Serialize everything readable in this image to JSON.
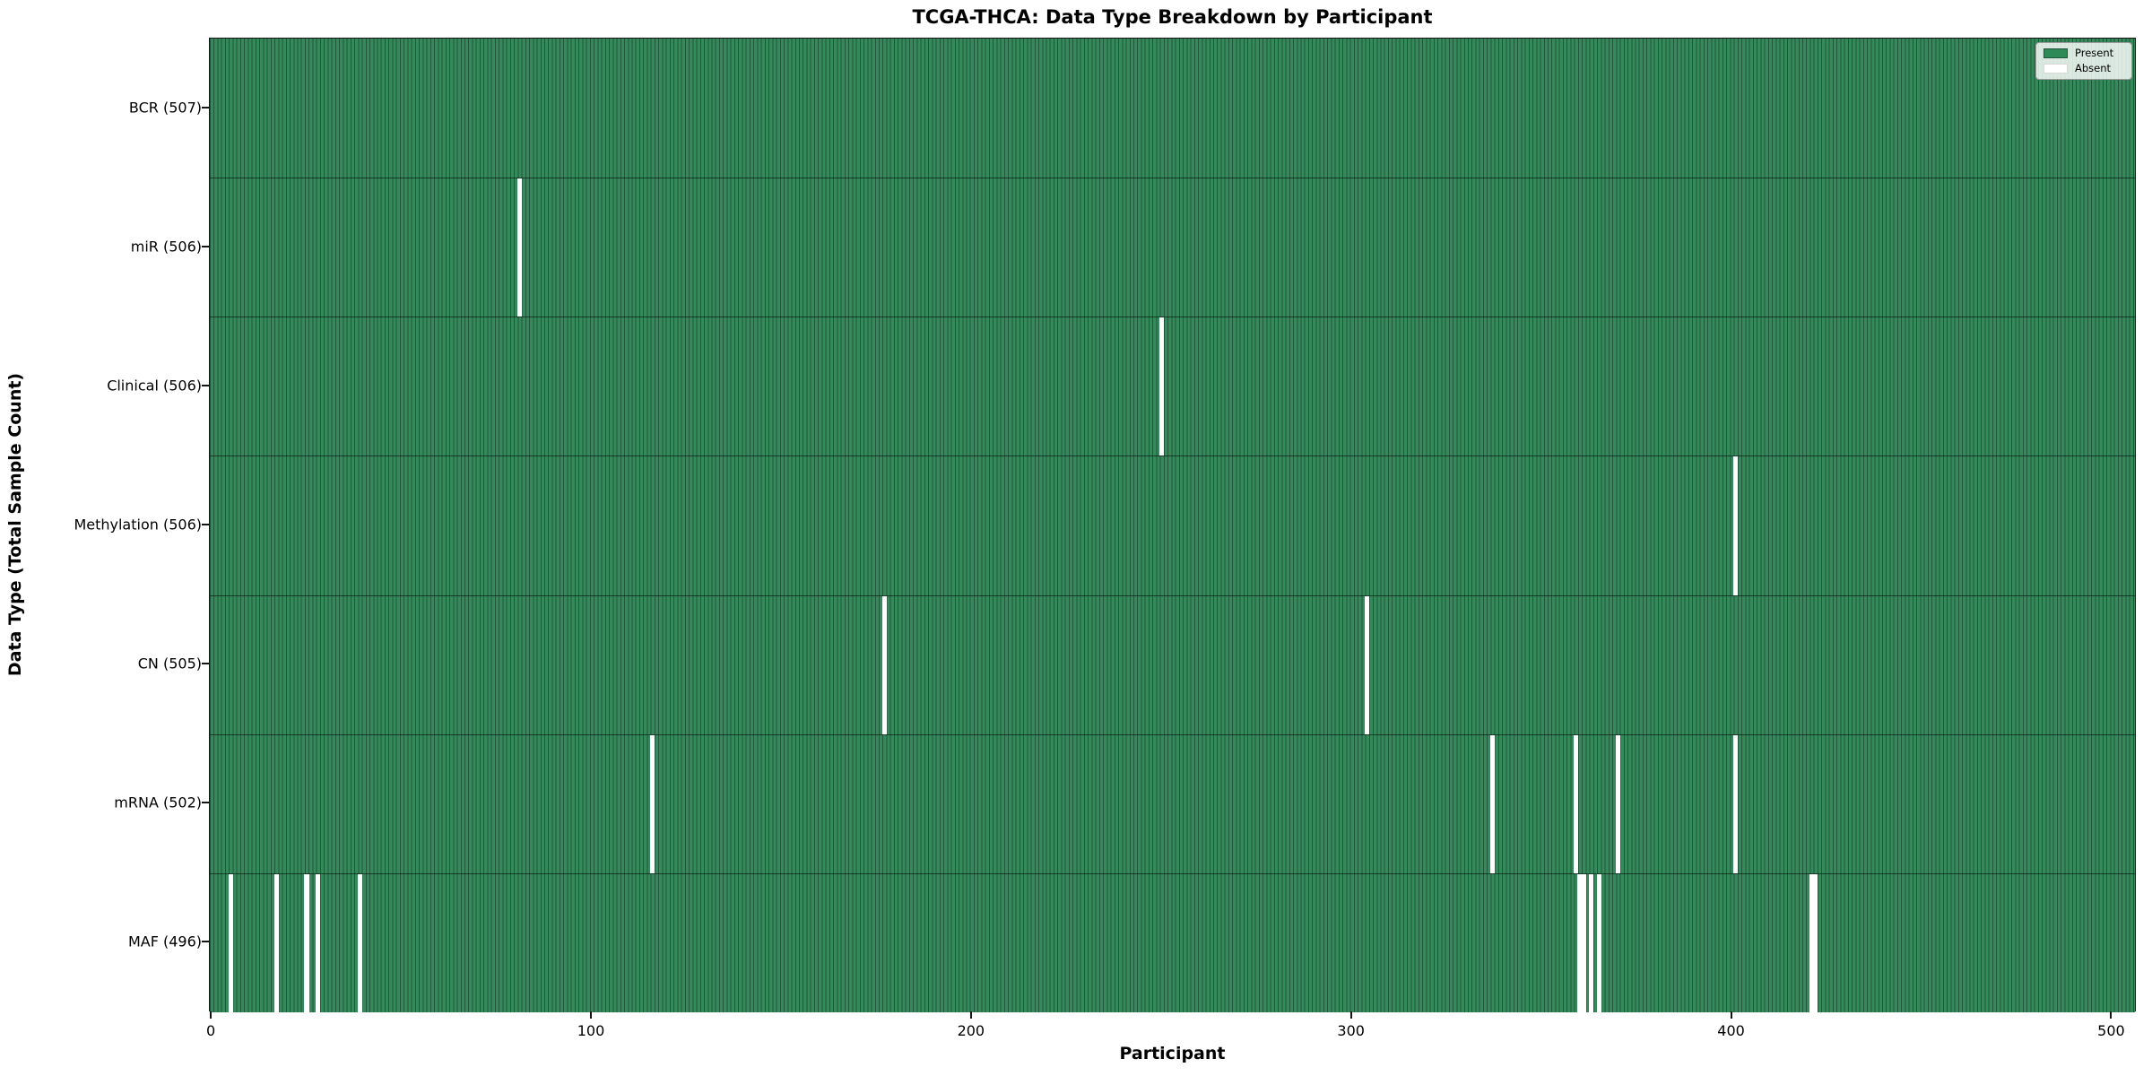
{
  "chart_data": {
    "type": "heatmap",
    "title": "TCGA-THCA: Data Type Breakdown by Participant",
    "xlabel": "Participant",
    "ylabel": "Data Type (Total Sample Count)",
    "n_participants": 507,
    "x_ticks": [
      0,
      100,
      200,
      300,
      400,
      500
    ],
    "grid": false,
    "legend_position": "upper right",
    "legend": {
      "entries": [
        {
          "label": "Present",
          "color": "#2e8b57"
        },
        {
          "label": "Absent",
          "color": "#ffffff"
        }
      ]
    },
    "rows": [
      {
        "label": "BCR (507)",
        "data_type": "BCR",
        "present_count": 507,
        "absent_participants": []
      },
      {
        "label": "miR (506)",
        "data_type": "miR",
        "present_count": 506,
        "absent_participants": [
          81
        ]
      },
      {
        "label": "Clinical (506)",
        "data_type": "Clinical",
        "present_count": 506,
        "absent_participants": [
          250
        ]
      },
      {
        "label": "Methylation (506)",
        "data_type": "Methylation",
        "present_count": 506,
        "absent_participants": [
          401
        ]
      },
      {
        "label": "CN (505)",
        "data_type": "CN",
        "present_count": 505,
        "absent_participants": [
          177,
          304
        ]
      },
      {
        "label": "mRNA (502)",
        "data_type": "mRNA",
        "present_count": 502,
        "absent_participants": [
          116,
          337,
          359,
          370,
          401
        ]
      },
      {
        "label": "MAF (496)",
        "data_type": "MAF",
        "present_count": 496,
        "absent_participants": [
          5,
          17,
          25,
          28,
          39,
          360,
          361,
          363,
          365,
          421,
          422
        ]
      }
    ],
    "colors": {
      "present": "#2e8b57",
      "absent": "#ffffff",
      "bar_fill": "#35895a",
      "bar_edge": "#20563a",
      "axis": "#141414"
    }
  }
}
